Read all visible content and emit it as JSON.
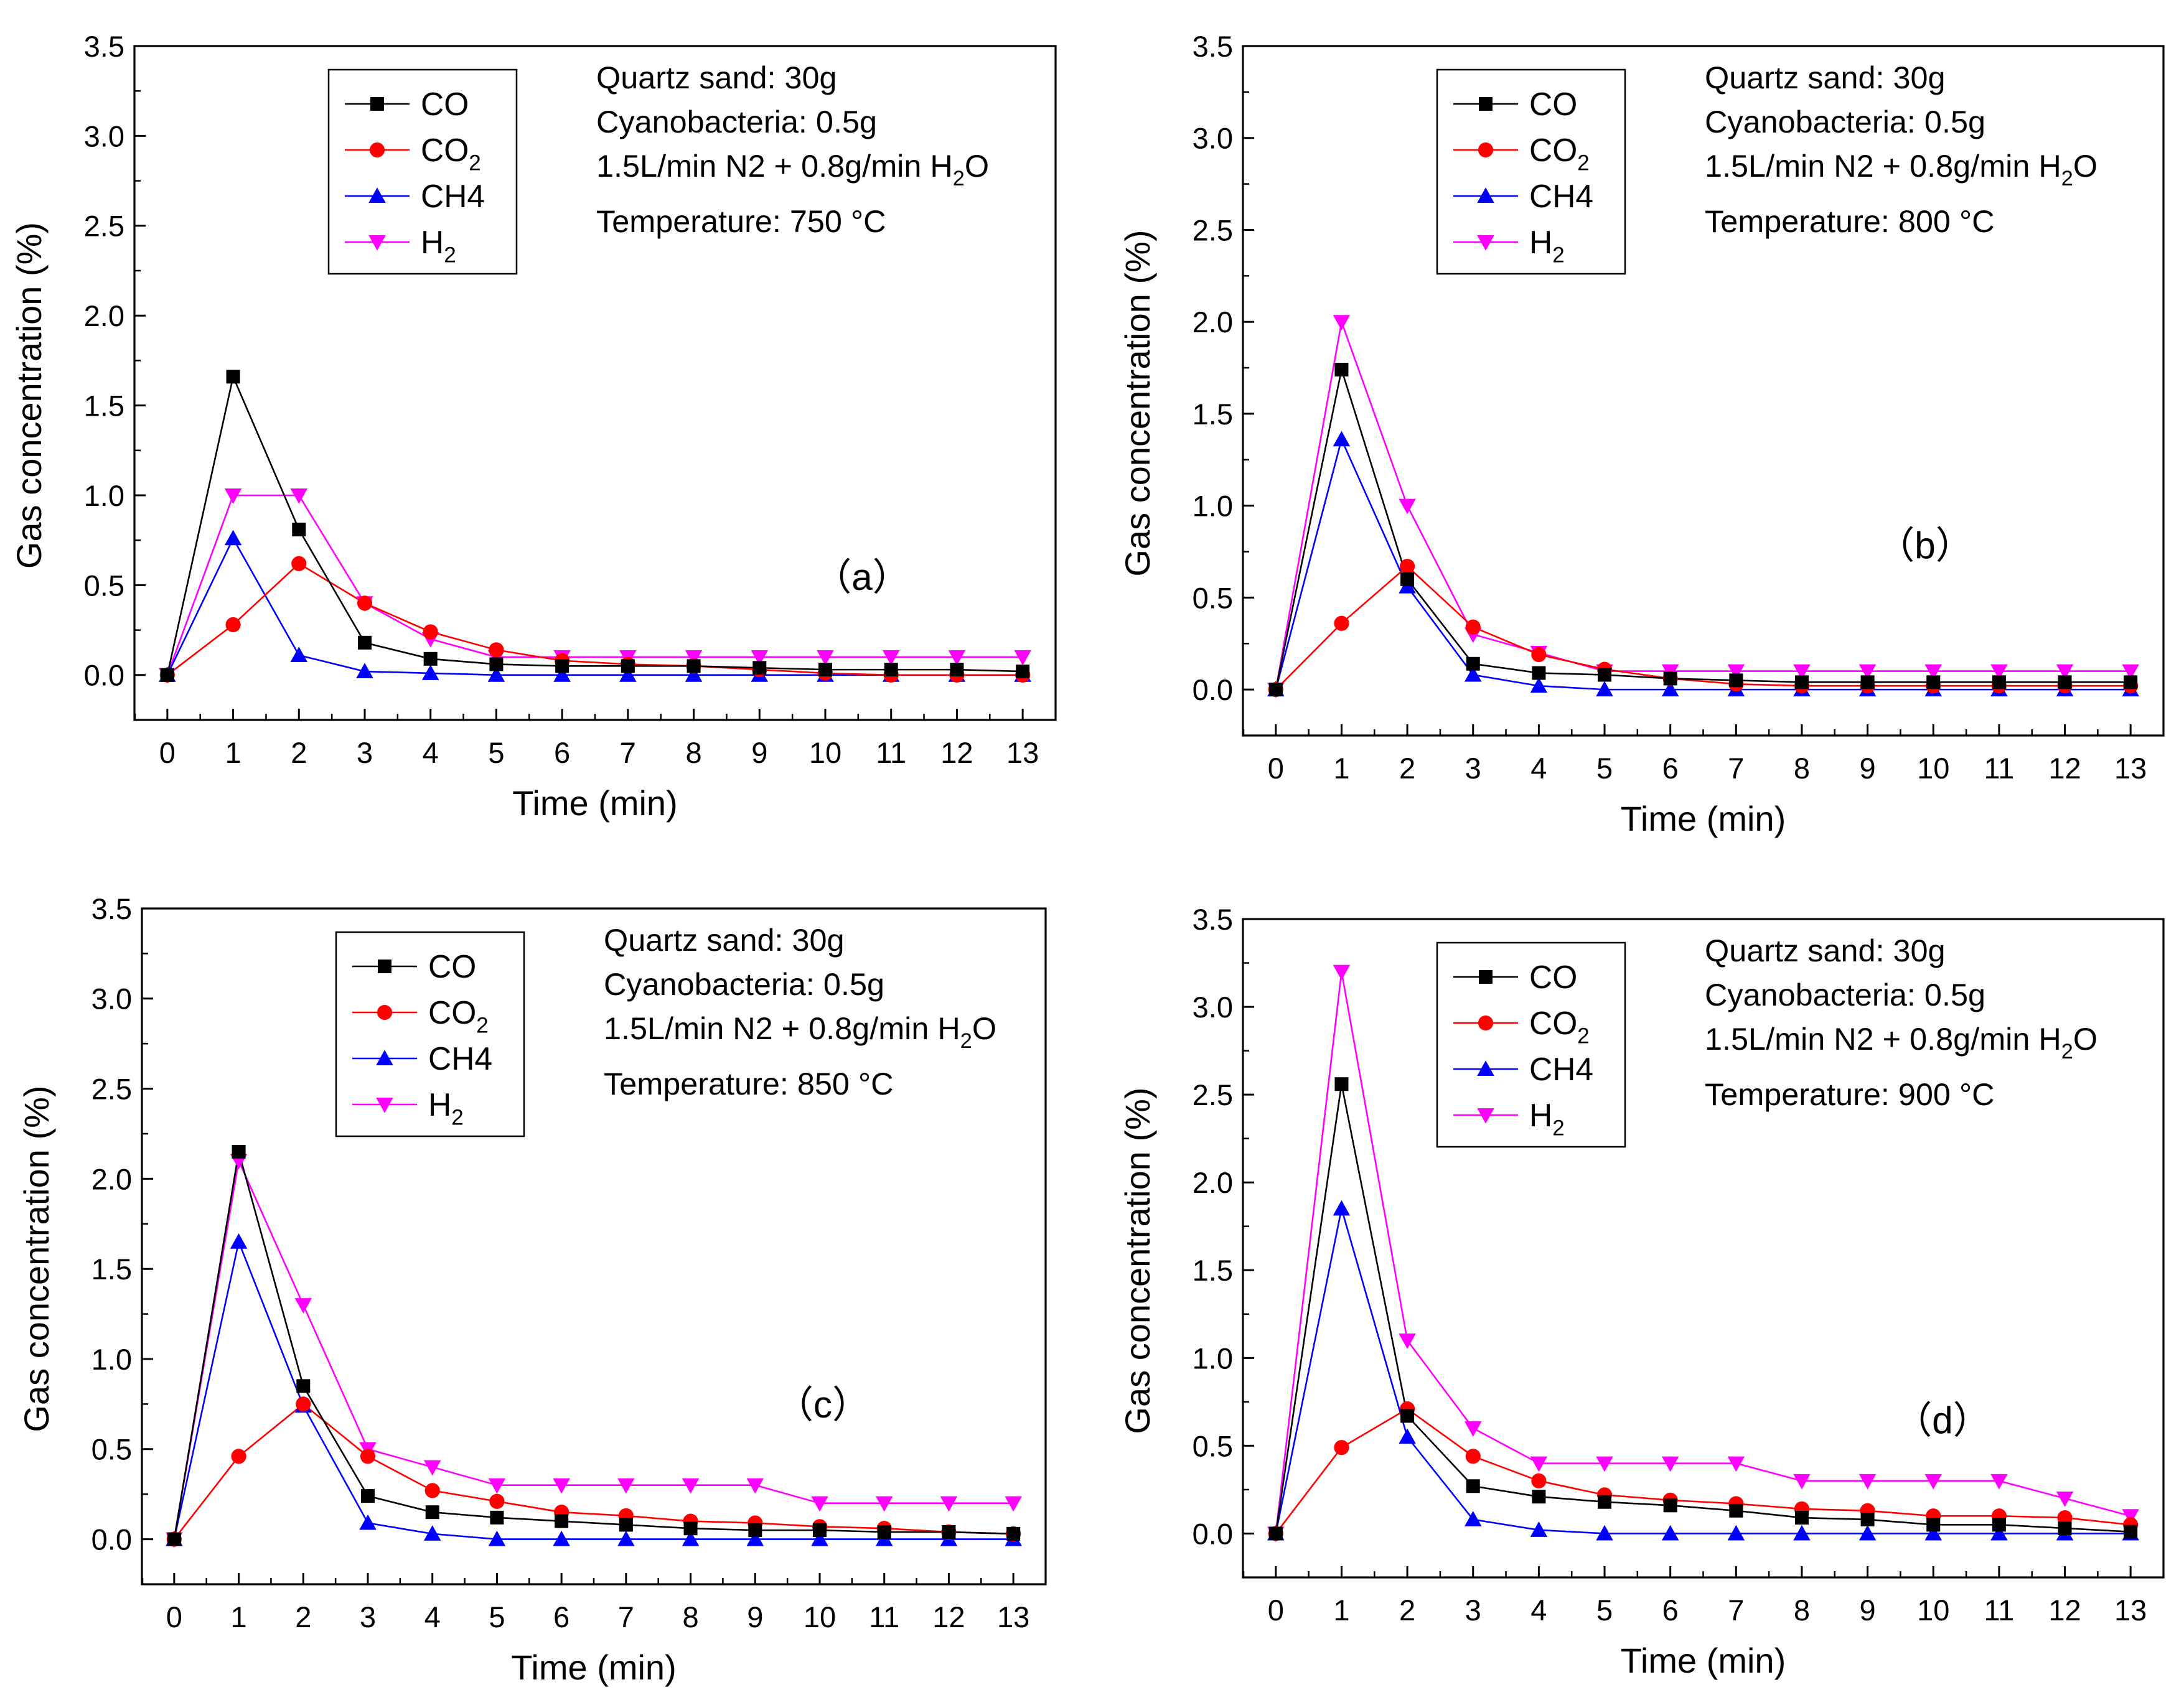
{
  "colors": {
    "CO": "#000000",
    "CO2": "#ff0000",
    "CH4": "#0000ff",
    "H2": "#ff00ff"
  },
  "chart_data": [
    {
      "type": "line",
      "panel_label": "（a）",
      "xlabel": "Time (min)",
      "ylabel": "Gas concentration (%)",
      "xlim": [
        -0.5,
        13.5
      ],
      "ylim": [
        -0.25,
        3.5
      ],
      "xticks": [
        "0",
        "1",
        "2",
        "3",
        "4",
        "5",
        "6",
        "7",
        "8",
        "9",
        "10",
        "11",
        "12",
        "13"
      ],
      "yticks": [
        "0.0",
        "0.5",
        "1.0",
        "1.5",
        "2.0",
        "2.5",
        "3.0",
        "3.5"
      ],
      "x": [
        0,
        1,
        2,
        3,
        4,
        5,
        6,
        7,
        8,
        9,
        10,
        11,
        12,
        13
      ],
      "legend": [
        "CO",
        "CO2",
        "CH4",
        "H2"
      ],
      "annotations": [
        "Quartz sand: 30g",
        "Cyanobacteria: 0.5g",
        "1.5L/min N2 + 0.8g/min H2O",
        "Temperature: 750 °C"
      ],
      "series": [
        {
          "name": "CO",
          "marker": "square",
          "values": [
            0,
            1.66,
            0.81,
            0.18,
            0.09,
            0.06,
            0.05,
            0.05,
            0.05,
            0.04,
            0.03,
            0.03,
            0.03,
            0.02
          ]
        },
        {
          "name": "CO2",
          "marker": "circle",
          "values": [
            0,
            0.28,
            0.62,
            0.4,
            0.24,
            0.14,
            0.08,
            0.06,
            0.05,
            0.03,
            0.01,
            0.0,
            0.0,
            0.0
          ]
        },
        {
          "name": "CH4",
          "marker": "triangle-up",
          "values": [
            0,
            0.76,
            0.11,
            0.02,
            0.01,
            0.0,
            0.0,
            0.0,
            0.0,
            0.0,
            0.0,
            0.0,
            0.0,
            0.0
          ]
        },
        {
          "name": "H2",
          "marker": "triangle-down",
          "values": [
            0,
            1.0,
            1.0,
            0.4,
            0.2,
            0.1,
            0.1,
            0.1,
            0.1,
            0.1,
            0.1,
            0.1,
            0.1,
            0.1
          ]
        }
      ]
    },
    {
      "type": "line",
      "panel_label": "（b）",
      "xlabel": "Time (min)",
      "ylabel": "Gas concentration (%)",
      "xlim": [
        -0.5,
        13.5
      ],
      "ylim": [
        -0.25,
        3.5
      ],
      "xticks": [
        "0",
        "1",
        "2",
        "3",
        "4",
        "5",
        "6",
        "7",
        "8",
        "9",
        "10",
        "11",
        "12",
        "13"
      ],
      "yticks": [
        "0.0",
        "0.5",
        "1.0",
        "1.5",
        "2.0",
        "2.5",
        "3.0",
        "3.5"
      ],
      "x": [
        0,
        1,
        2,
        3,
        4,
        5,
        6,
        7,
        8,
        9,
        10,
        11,
        12,
        13
      ],
      "legend": [
        "CO",
        "CO2",
        "CH4",
        "H2"
      ],
      "annotations": [
        "Quartz sand: 30g",
        "Cyanobacteria: 0.5g",
        "1.5L/min N2 + 0.8g/min H2O",
        "Temperature: 800 °C"
      ],
      "series": [
        {
          "name": "CO",
          "marker": "square",
          "values": [
            0,
            1.74,
            0.6,
            0.14,
            0.09,
            0.08,
            0.06,
            0.05,
            0.04,
            0.04,
            0.04,
            0.04,
            0.04,
            0.04
          ]
        },
        {
          "name": "CO2",
          "marker": "circle",
          "values": [
            0,
            0.36,
            0.67,
            0.34,
            0.19,
            0.11,
            0.06,
            0.03,
            0.02,
            0.02,
            0.02,
            0.02,
            0.02,
            0.02
          ]
        },
        {
          "name": "CH4",
          "marker": "triangle-up",
          "values": [
            0,
            1.36,
            0.56,
            0.08,
            0.02,
            0.0,
            0.0,
            0.0,
            0.0,
            0.0,
            0.0,
            0.0,
            0.0,
            0.0
          ]
        },
        {
          "name": "H2",
          "marker": "triangle-down",
          "values": [
            0,
            2.0,
            1.0,
            0.3,
            0.2,
            0.1,
            0.1,
            0.1,
            0.1,
            0.1,
            0.1,
            0.1,
            0.1,
            0.1
          ]
        }
      ]
    },
    {
      "type": "line",
      "panel_label": "（c）",
      "xlabel": "Time (min)",
      "ylabel": "Gas concentration (%)",
      "xlim": [
        -0.5,
        13.5
      ],
      "ylim": [
        -0.25,
        3.5
      ],
      "xticks": [
        "0",
        "1",
        "2",
        "3",
        "4",
        "5",
        "6",
        "7",
        "8",
        "9",
        "10",
        "11",
        "12",
        "13"
      ],
      "yticks": [
        "0.0",
        "0.5",
        "1.0",
        "1.5",
        "2.0",
        "2.5",
        "3.0",
        "3.5"
      ],
      "x": [
        0,
        1,
        2,
        3,
        4,
        5,
        6,
        7,
        8,
        9,
        10,
        11,
        12,
        13
      ],
      "legend": [
        "CO",
        "CO2",
        "CH4",
        "H2"
      ],
      "annotations": [
        "Quartz sand: 30g",
        "Cyanobacteria: 0.5g",
        "1.5L/min N2 + 0.8g/min H2O",
        "Temperature: 850 °C"
      ],
      "series": [
        {
          "name": "CO",
          "marker": "square",
          "values": [
            0,
            2.15,
            0.85,
            0.24,
            0.15,
            0.12,
            0.1,
            0.08,
            0.06,
            0.05,
            0.05,
            0.04,
            0.04,
            0.03
          ]
        },
        {
          "name": "CO2",
          "marker": "circle",
          "values": [
            0,
            0.46,
            0.75,
            0.46,
            0.27,
            0.21,
            0.15,
            0.13,
            0.1,
            0.09,
            0.07,
            0.06,
            0.04,
            0.03
          ]
        },
        {
          "name": "CH4",
          "marker": "triangle-up",
          "values": [
            0,
            1.65,
            0.74,
            0.09,
            0.03,
            0.0,
            0.0,
            0.0,
            0.0,
            0.0,
            0.0,
            0.0,
            0.0,
            0.0
          ]
        },
        {
          "name": "H2",
          "marker": "triangle-down",
          "values": [
            0,
            2.1,
            1.3,
            0.5,
            0.4,
            0.3,
            0.3,
            0.3,
            0.3,
            0.3,
            0.2,
            0.2,
            0.2,
            0.2
          ]
        }
      ]
    },
    {
      "type": "line",
      "panel_label": "（d）",
      "xlabel": "Time (min)",
      "ylabel": "Gas concentration (%)",
      "xlim": [
        -0.5,
        13.5
      ],
      "ylim": [
        -0.25,
        3.5
      ],
      "xticks": [
        "0",
        "1",
        "2",
        "3",
        "4",
        "5",
        "6",
        "7",
        "8",
        "9",
        "10",
        "11",
        "12",
        "13"
      ],
      "yticks": [
        "0.0",
        "0.5",
        "1.0",
        "1.5",
        "2.0",
        "2.5",
        "3.0",
        "3.5"
      ],
      "x": [
        0,
        1,
        2,
        3,
        4,
        5,
        6,
        7,
        8,
        9,
        10,
        11,
        12,
        13
      ],
      "legend": [
        "CO",
        "CO2",
        "CH4",
        "H2"
      ],
      "annotations": [
        "Quartz sand: 30g",
        "Cyanobacteria: 0.5g",
        "1.5L/min N2 + 0.8g/min H2O",
        "Temperature: 900 °C"
      ],
      "series": [
        {
          "name": "CO",
          "marker": "square",
          "values": [
            0,
            2.56,
            0.67,
            0.27,
            0.21,
            0.18,
            0.16,
            0.13,
            0.09,
            0.08,
            0.05,
            0.05,
            0.03,
            0.01
          ]
        },
        {
          "name": "CO2",
          "marker": "circle",
          "values": [
            0,
            0.49,
            0.71,
            0.44,
            0.3,
            0.22,
            0.19,
            0.17,
            0.14,
            0.13,
            0.1,
            0.1,
            0.09,
            0.05
          ]
        },
        {
          "name": "CH4",
          "marker": "triangle-up",
          "values": [
            0,
            1.85,
            0.55,
            0.08,
            0.02,
            0.0,
            0.0,
            0.0,
            0.0,
            0.0,
            0.0,
            0.0,
            0.0,
            0.0
          ]
        },
        {
          "name": "H2",
          "marker": "triangle-down",
          "values": [
            0,
            3.2,
            1.1,
            0.6,
            0.4,
            0.4,
            0.4,
            0.4,
            0.3,
            0.3,
            0.3,
            0.3,
            0.2,
            0.1
          ]
        }
      ]
    }
  ]
}
